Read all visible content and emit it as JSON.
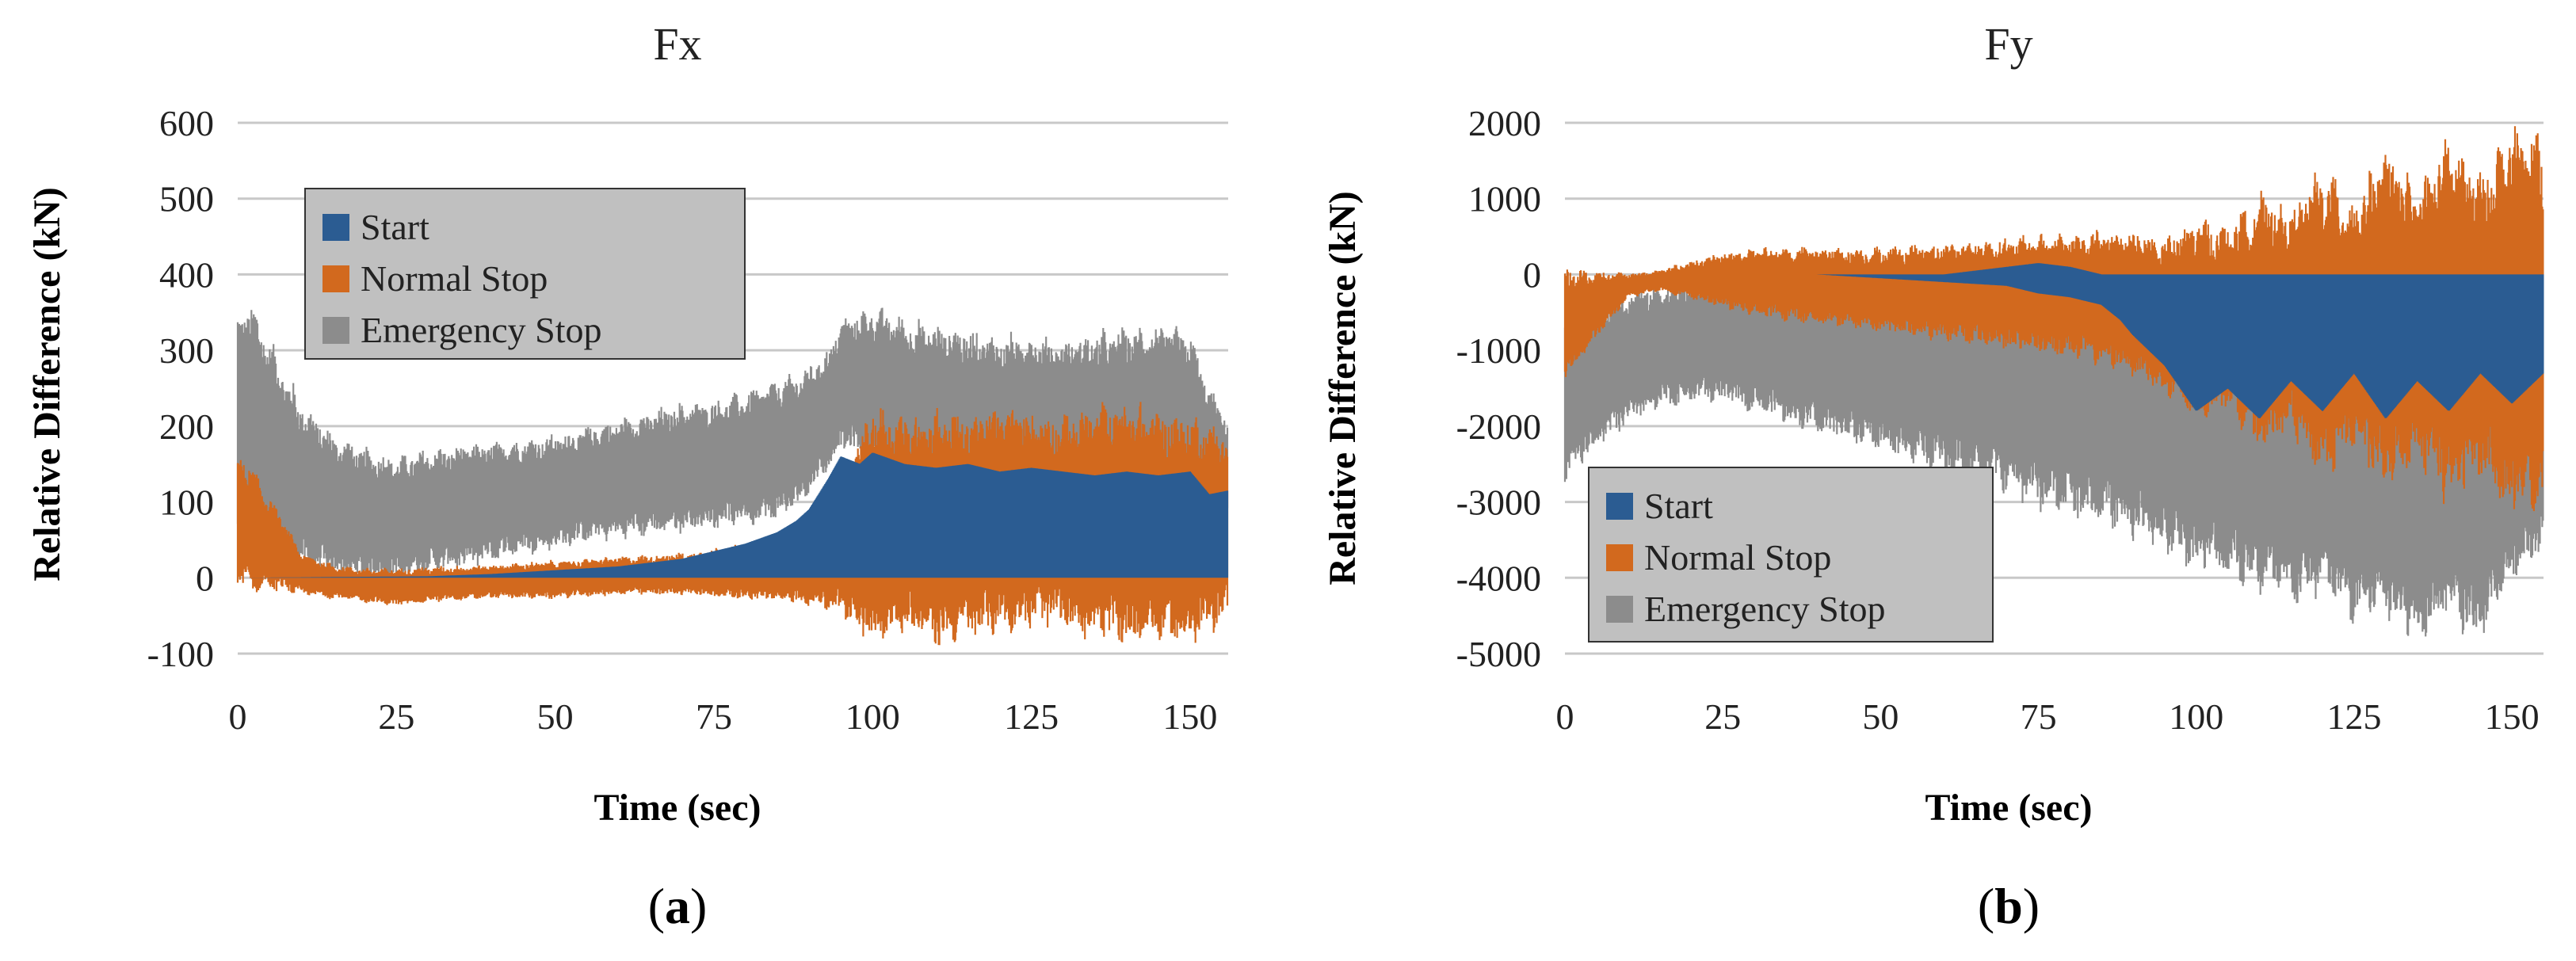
{
  "colors": {
    "start": "#2B5C92",
    "normal_stop": "#D2691E",
    "emergency_stop": "#8C8C8C",
    "grid": "#C8C8C8",
    "legend_bg": "#C0C0C0"
  },
  "chart_data": [
    {
      "type": "area",
      "title": "Fx",
      "xlabel": "Time (sec)",
      "ylabel": "Relative Difference (kN)",
      "xlim": [
        0,
        156
      ],
      "ylim": [
        -100,
        600
      ],
      "xticks": [
        0,
        25,
        50,
        75,
        100,
        125,
        150
      ],
      "yticks": [
        -100,
        0,
        100,
        200,
        300,
        400,
        500,
        600
      ],
      "xtick_labels": [
        "0",
        "25",
        "50",
        "75",
        "100",
        "125",
        "150"
      ],
      "ytick_labels": [
        "-100",
        "0",
        "100",
        "200",
        "300",
        "400",
        "500",
        "600"
      ],
      "legend": [
        "Start",
        "Normal Stop",
        "Emergency Stop"
      ],
      "legend_position": "upper-left",
      "panel_label": {
        "open": "(",
        "letter": "a",
        "close": ")"
      },
      "series": [
        {
          "name": "Emergency Stop",
          "color_key": "emergency_stop",
          "x": [
            0,
            2,
            5,
            10,
            15,
            20,
            25,
            30,
            35,
            40,
            45,
            50,
            55,
            60,
            65,
            70,
            75,
            80,
            85,
            88,
            90,
            93,
            95,
            98,
            100,
            105,
            110,
            115,
            120,
            125,
            130,
            135,
            140,
            145,
            150,
            153,
            156
          ],
          "upper": [
            330,
            350,
            300,
            220,
            180,
            160,
            150,
            160,
            165,
            170,
            175,
            180,
            190,
            200,
            210,
            220,
            225,
            235,
            250,
            260,
            270,
            290,
            330,
            340,
            345,
            330,
            320,
            315,
            305,
            310,
            300,
            310,
            315,
            320,
            310,
            240,
            200
          ],
          "lower": [
            80,
            60,
            40,
            20,
            10,
            5,
            5,
            15,
            20,
            30,
            40,
            45,
            55,
            60,
            65,
            70,
            75,
            80,
            85,
            100,
            120,
            150,
            180,
            170,
            160,
            120,
            110,
            100,
            110,
            90,
            100,
            90,
            95,
            100,
            90,
            80,
            80
          ]
        },
        {
          "name": "Normal Stop",
          "color_key": "normal_stop",
          "x": [
            0,
            2,
            5,
            8,
            10,
            15,
            20,
            25,
            30,
            40,
            50,
            60,
            70,
            80,
            90,
            95,
            100,
            105,
            110,
            115,
            120,
            125,
            130,
            135,
            140,
            145,
            150,
            156
          ],
          "upper": [
            155,
            140,
            100,
            60,
            30,
            15,
            10,
            10,
            12,
            15,
            20,
            25,
            30,
            40,
            60,
            120,
            210,
            200,
            205,
            200,
            210,
            205,
            200,
            210,
            215,
            205,
            200,
            180
          ],
          "lower": [
            0,
            -10,
            -10,
            -15,
            -20,
            -25,
            -30,
            -35,
            -30,
            -25,
            -25,
            -20,
            -20,
            -25,
            -30,
            -40,
            -70,
            -55,
            -75,
            -65,
            -55,
            -50,
            -50,
            -65,
            -70,
            -65,
            -75,
            -40
          ]
        },
        {
          "name": "Start",
          "color_key": "start",
          "x": [
            0,
            30,
            40,
            50,
            60,
            70,
            75,
            80,
            85,
            88,
            90,
            93,
            95,
            98,
            100,
            105,
            110,
            115,
            120,
            125,
            130,
            135,
            140,
            145,
            150,
            153,
            156
          ],
          "upper": [
            0,
            2,
            5,
            10,
            15,
            25,
            35,
            45,
            60,
            75,
            90,
            130,
            160,
            150,
            165,
            150,
            145,
            150,
            140,
            145,
            140,
            135,
            140,
            135,
            140,
            110,
            115
          ],
          "lower": [
            0,
            0,
            0,
            0,
            0,
            0,
            0,
            0,
            0,
            0,
            0,
            0,
            0,
            0,
            0,
            0,
            0,
            0,
            0,
            0,
            0,
            0,
            0,
            0,
            0,
            0,
            0
          ]
        }
      ]
    },
    {
      "type": "area",
      "title": "Fy",
      "xlabel": "Time (sec)",
      "ylabel": "Relative Difference (kN)",
      "xlim": [
        0,
        155
      ],
      "ylim": [
        -5000,
        2000
      ],
      "xticks": [
        0,
        25,
        50,
        75,
        100,
        125,
        150
      ],
      "yticks": [
        -5000,
        -4000,
        -3000,
        -2000,
        -1000,
        0,
        1000,
        2000
      ],
      "xtick_labels": [
        "0",
        "25",
        "50",
        "75",
        "100",
        "125",
        "150"
      ],
      "ytick_labels": [
        "-5000",
        "-4000",
        "-3000",
        "-2000",
        "-1000",
        "0",
        "1000",
        "2000"
      ],
      "legend": [
        "Start",
        "Normal Stop",
        "Emergency Stop"
      ],
      "legend_position": "lower-left",
      "panel_label": {
        "open": "(",
        "letter": "b",
        "close": ")"
      },
      "series": [
        {
          "name": "Emergency Stop",
          "color_key": "emergency_stop",
          "x": [
            0,
            2,
            5,
            10,
            15,
            20,
            25,
            30,
            40,
            50,
            60,
            65,
            70,
            75,
            80,
            85,
            90,
            95,
            100,
            105,
            110,
            115,
            120,
            125,
            130,
            135,
            140,
            145,
            150,
            155
          ],
          "upper": [
            -600,
            -500,
            -400,
            -300,
            -200,
            -150,
            -100,
            -100,
            -100,
            -100,
            -100,
            -100,
            -100,
            -150,
            -200,
            -250,
            -300,
            -400,
            -500,
            -600,
            -700,
            -800,
            -900,
            -950,
            -1000,
            -1050,
            -1100,
            -1150,
            -1200,
            -1300
          ],
          "lower": [
            -2600,
            -2400,
            -2200,
            -1900,
            -1700,
            -1600,
            -1600,
            -1700,
            -2000,
            -2200,
            -2500,
            -2600,
            -2700,
            -2900,
            -3000,
            -3100,
            -3300,
            -3500,
            -3700,
            -3800,
            -4000,
            -4200,
            -4000,
            -4400,
            -4300,
            -4600,
            -4300,
            -4700,
            -3900,
            -3500
          ]
        },
        {
          "name": "Normal Stop",
          "color_key": "normal_stop",
          "x": [
            0,
            2,
            5,
            10,
            15,
            20,
            25,
            30,
            40,
            50,
            60,
            70,
            80,
            90,
            95,
            100,
            105,
            110,
            115,
            120,
            125,
            130,
            135,
            140,
            145,
            150,
            153,
            155
          ],
          "upper": [
            0,
            0,
            0,
            0,
            50,
            150,
            250,
            300,
            300,
            300,
            350,
            400,
            450,
            500,
            350,
            600,
            500,
            900,
            700,
            1200,
            800,
            1450,
            900,
            1600,
            1100,
            1700,
            1600,
            1650
          ],
          "lower": [
            -1300,
            -1100,
            -800,
            -300,
            -200,
            -300,
            -400,
            -500,
            -600,
            -700,
            -800,
            -900,
            -1000,
            -1200,
            -1500,
            -1800,
            -1600,
            -2200,
            -1900,
            -2500,
            -2100,
            -2700,
            -2200,
            -2800,
            -2400,
            -3000,
            -2900,
            -2800
          ]
        },
        {
          "name": "Start",
          "color_key": "start",
          "x": [
            0,
            20,
            40,
            60,
            70,
            75,
            80,
            85,
            88,
            90,
            95,
            100,
            105,
            110,
            115,
            120,
            125,
            130,
            135,
            140,
            145,
            150,
            155
          ],
          "upper": [
            0,
            0,
            0,
            0,
            100,
            150,
            100,
            0,
            0,
            0,
            0,
            0,
            0,
            0,
            0,
            0,
            0,
            0,
            0,
            0,
            0,
            0,
            0
          ],
          "lower": [
            0,
            0,
            0,
            -100,
            -150,
            -250,
            -300,
            -400,
            -600,
            -800,
            -1200,
            -1800,
            -1500,
            -1900,
            -1400,
            -1800,
            -1300,
            -1900,
            -1400,
            -1800,
            -1300,
            -1700,
            -1300
          ]
        }
      ]
    }
  ]
}
